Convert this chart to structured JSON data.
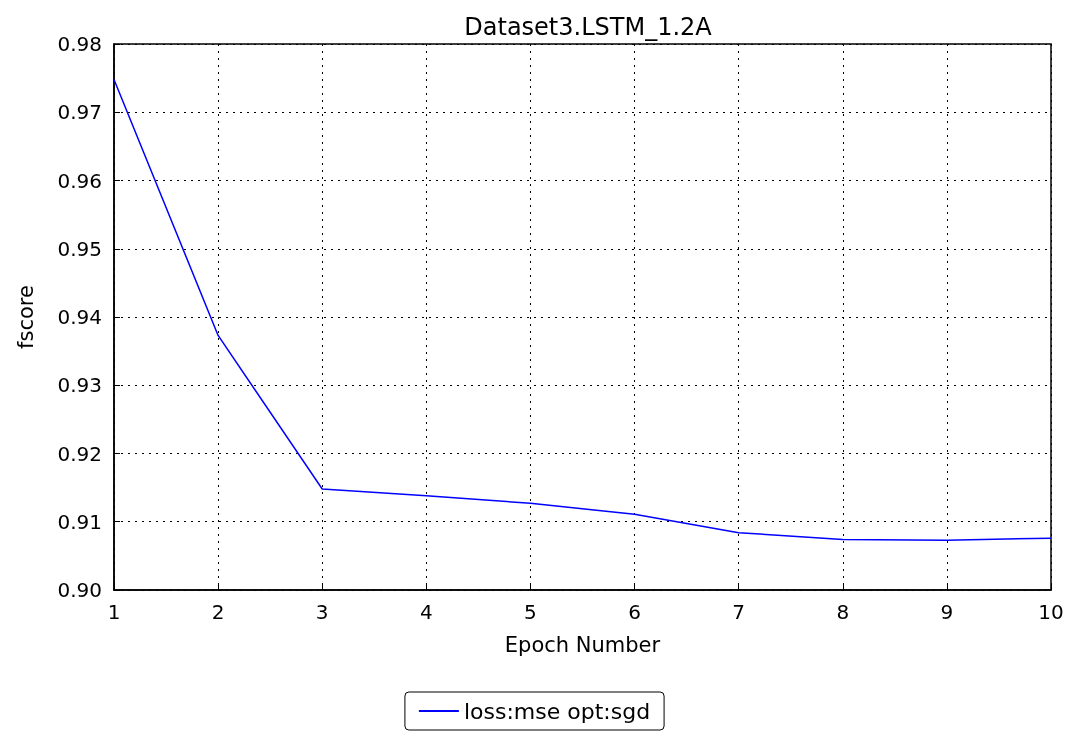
{
  "chart_data": {
    "type": "line",
    "title": "Dataset3.LSTM_1.2A",
    "xlabel": "Epoch Number",
    "ylabel": "fscore",
    "x": [
      1,
      2,
      3,
      4,
      5,
      6,
      7,
      8,
      9,
      10
    ],
    "series": [
      {
        "name": "loss:mse opt:sgd",
        "color": "#0000ff",
        "values": [
          0.9748,
          0.9373,
          0.9148,
          0.9138,
          0.9127,
          0.9111,
          0.9084,
          0.9074,
          0.9073,
          0.9076
        ]
      }
    ],
    "xlim": [
      1,
      10
    ],
    "xticks": [
      1,
      2,
      3,
      4,
      5,
      6,
      7,
      8,
      9,
      10
    ],
    "ylim": [
      0.9,
      0.98
    ],
    "yticks": [
      {
        "value": 0.9,
        "label": "0.90"
      },
      0.91,
      0.92,
      0.93,
      0.94,
      0.95,
      0.96,
      0.97,
      {
        "value": 0.98,
        "label": "0.98"
      }
    ],
    "grid": true,
    "legend": "bottom",
    "marker": "none",
    "line_style": "solid"
  }
}
